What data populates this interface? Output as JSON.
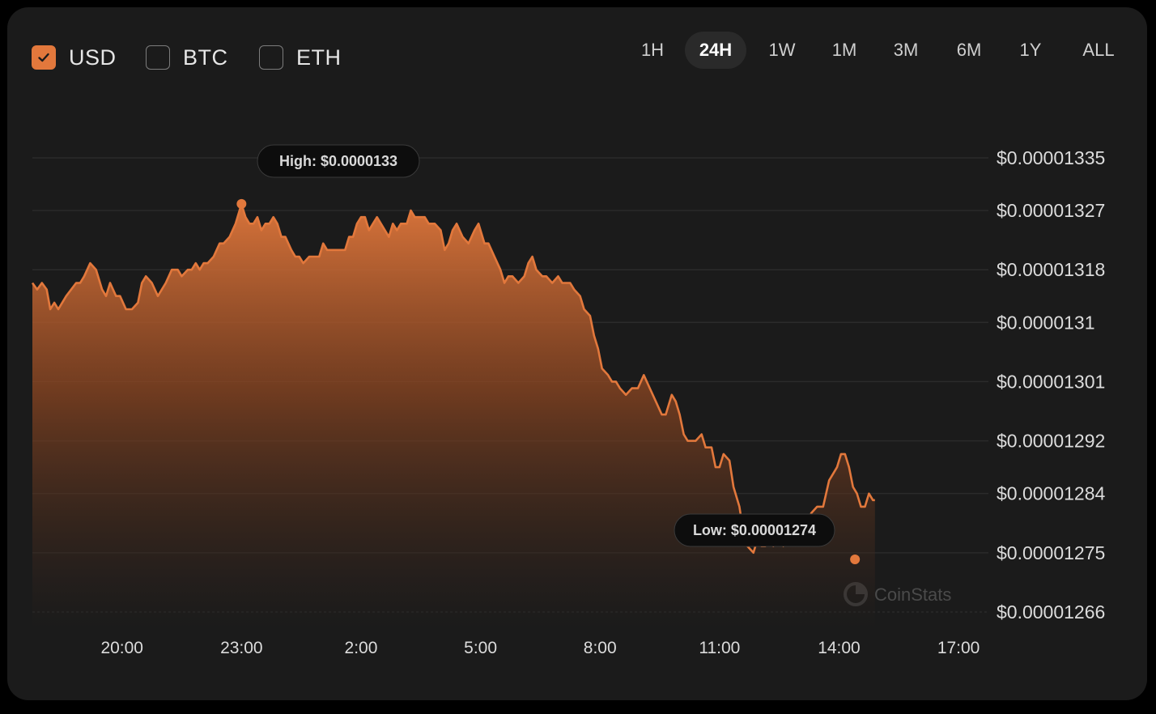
{
  "currencies": [
    {
      "label": "USD",
      "checked": true
    },
    {
      "label": "BTC",
      "checked": false
    },
    {
      "label": "ETH",
      "checked": false
    }
  ],
  "time_ranges": [
    "1H",
    "24H",
    "1W",
    "1M",
    "3M",
    "6M",
    "1Y",
    "ALL"
  ],
  "active_range": "24H",
  "watermark": "CoinStats",
  "colors": {
    "accent": "#e2783c",
    "background": "#1b1b1b",
    "text": "#dcdcdc"
  },
  "chart_data": {
    "type": "area",
    "title": "",
    "xlabel": "",
    "ylabel": "",
    "y_tick_labels": [
      "$0.00001335",
      "$0.00001327",
      "$0.00001318",
      "$0.0000131",
      "$0.00001301",
      "$0.00001292",
      "$0.00001284",
      "$0.00001275",
      "$0.00001266"
    ],
    "y_ticks": [
      1.335e-05,
      1.327e-05,
      1.318e-05,
      1.31e-05,
      1.301e-05,
      1.292e-05,
      1.284e-05,
      1.275e-05,
      1.266e-05
    ],
    "x_tick_labels": [
      "20:00",
      "23:00",
      "2:00",
      "5:00",
      "8:00",
      "11:00",
      "14:00",
      "17:00"
    ],
    "x_ticks_hours": [
      2.25,
      5.25,
      8.25,
      11.25,
      14.25,
      17.25,
      20.25,
      23.25
    ],
    "x_unit": "hours elapsed in 24H window",
    "ylim": [
      1.266e-05,
      1.335e-05
    ],
    "grid": true,
    "annotations": {
      "high": {
        "label": "High: $0.0000133",
        "x": 5.25,
        "y": 1.328e-05
      },
      "low": {
        "label": "Low: $0.00001274",
        "x": 20.65,
        "y": 1.274e-05
      }
    },
    "series": [
      {
        "points": [
          [
            0.0,
            1.316e-05
          ],
          [
            0.12,
            1.315e-05
          ],
          [
            0.24,
            1.316e-05
          ],
          [
            0.36,
            1.315e-05
          ],
          [
            0.45,
            1.312e-05
          ],
          [
            0.55,
            1.313e-05
          ],
          [
            0.65,
            1.312e-05
          ],
          [
            0.85,
            1.314e-05
          ],
          [
            1.1,
            1.316e-05
          ],
          [
            1.2,
            1.316e-05
          ],
          [
            1.3,
            1.317e-05
          ],
          [
            1.45,
            1.319e-05
          ],
          [
            1.6,
            1.318e-05
          ],
          [
            1.75,
            1.315e-05
          ],
          [
            1.85,
            1.314e-05
          ],
          [
            1.95,
            1.316e-05
          ],
          [
            2.1,
            1.314e-05
          ],
          [
            2.2,
            1.314e-05
          ],
          [
            2.35,
            1.312e-05
          ],
          [
            2.5,
            1.312e-05
          ],
          [
            2.65,
            1.313e-05
          ],
          [
            2.75,
            1.316e-05
          ],
          [
            2.85,
            1.317e-05
          ],
          [
            3.0,
            1.316e-05
          ],
          [
            3.15,
            1.314e-05
          ],
          [
            3.35,
            1.316e-05
          ],
          [
            3.5,
            1.318e-05
          ],
          [
            3.65,
            1.318e-05
          ],
          [
            3.75,
            1.317e-05
          ],
          [
            3.9,
            1.318e-05
          ],
          [
            4.0,
            1.318e-05
          ],
          [
            4.1,
            1.319e-05
          ],
          [
            4.2,
            1.318e-05
          ],
          [
            4.3,
            1.319e-05
          ],
          [
            4.4,
            1.319e-05
          ],
          [
            4.55,
            1.32e-05
          ],
          [
            4.7,
            1.322e-05
          ],
          [
            4.8,
            1.322e-05
          ],
          [
            4.95,
            1.323e-05
          ],
          [
            5.1,
            1.325e-05
          ],
          [
            5.25,
            1.328e-05
          ],
          [
            5.35,
            1.326e-05
          ],
          [
            5.45,
            1.325e-05
          ],
          [
            5.55,
            1.325e-05
          ],
          [
            5.65,
            1.326e-05
          ],
          [
            5.75,
            1.324e-05
          ],
          [
            5.85,
            1.325e-05
          ],
          [
            5.95,
            1.325e-05
          ],
          [
            6.05,
            1.326e-05
          ],
          [
            6.15,
            1.325e-05
          ],
          [
            6.25,
            1.323e-05
          ],
          [
            6.35,
            1.323e-05
          ],
          [
            6.5,
            1.321e-05
          ],
          [
            6.6,
            1.32e-05
          ],
          [
            6.7,
            1.32e-05
          ],
          [
            6.8,
            1.319e-05
          ],
          [
            6.95,
            1.32e-05
          ],
          [
            7.1,
            1.32e-05
          ],
          [
            7.2,
            1.32e-05
          ],
          [
            7.3,
            1.322e-05
          ],
          [
            7.4,
            1.321e-05
          ],
          [
            7.5,
            1.321e-05
          ],
          [
            7.65,
            1.321e-05
          ],
          [
            7.85,
            1.321e-05
          ],
          [
            7.95,
            1.323e-05
          ],
          [
            8.05,
            1.323e-05
          ],
          [
            8.15,
            1.325e-05
          ],
          [
            8.25,
            1.326e-05
          ],
          [
            8.35,
            1.326e-05
          ],
          [
            8.45,
            1.324e-05
          ],
          [
            8.55,
            1.325e-05
          ],
          [
            8.65,
            1.326e-05
          ],
          [
            8.75,
            1.325e-05
          ],
          [
            8.85,
            1.324e-05
          ],
          [
            8.95,
            1.323e-05
          ],
          [
            9.05,
            1.325e-05
          ],
          [
            9.15,
            1.324e-05
          ],
          [
            9.25,
            1.325e-05
          ],
          [
            9.4,
            1.325e-05
          ],
          [
            9.5,
            1.327e-05
          ],
          [
            9.6,
            1.326e-05
          ],
          [
            9.75,
            1.326e-05
          ],
          [
            9.85,
            1.326e-05
          ],
          [
            9.95,
            1.325e-05
          ],
          [
            10.1,
            1.325e-05
          ],
          [
            10.25,
            1.324e-05
          ],
          [
            10.35,
            1.321e-05
          ],
          [
            10.45,
            1.322e-05
          ],
          [
            10.55,
            1.324e-05
          ],
          [
            10.65,
            1.325e-05
          ],
          [
            10.8,
            1.323e-05
          ],
          [
            10.95,
            1.322e-05
          ],
          [
            11.1,
            1.324e-05
          ],
          [
            11.2,
            1.325e-05
          ],
          [
            11.35,
            1.322e-05
          ],
          [
            11.45,
            1.322e-05
          ],
          [
            11.6,
            1.32e-05
          ],
          [
            11.75,
            1.318e-05
          ],
          [
            11.85,
            1.316e-05
          ],
          [
            11.95,
            1.317e-05
          ],
          [
            12.05,
            1.317e-05
          ],
          [
            12.2,
            1.316e-05
          ],
          [
            12.35,
            1.317e-05
          ],
          [
            12.45,
            1.319e-05
          ],
          [
            12.55,
            1.32e-05
          ],
          [
            12.65,
            1.318e-05
          ],
          [
            12.8,
            1.317e-05
          ],
          [
            12.9,
            1.317e-05
          ],
          [
            13.05,
            1.316e-05
          ],
          [
            13.2,
            1.317e-05
          ],
          [
            13.3,
            1.316e-05
          ],
          [
            13.5,
            1.316e-05
          ],
          [
            13.6,
            1.315e-05
          ],
          [
            13.75,
            1.314e-05
          ],
          [
            13.85,
            1.312e-05
          ],
          [
            14.0,
            1.311e-05
          ],
          [
            14.1,
            1.308e-05
          ],
          [
            14.2,
            1.306e-05
          ],
          [
            14.3,
            1.303e-05
          ],
          [
            14.45,
            1.302e-05
          ],
          [
            14.55,
            1.301e-05
          ],
          [
            14.65,
            1.301e-05
          ],
          [
            14.75,
            1.3e-05
          ],
          [
            14.9,
            1.299e-05
          ],
          [
            15.05,
            1.3e-05
          ],
          [
            15.2,
            1.3e-05
          ],
          [
            15.35,
            1.302e-05
          ],
          [
            15.5,
            1.3e-05
          ],
          [
            15.65,
            1.298e-05
          ],
          [
            15.8,
            1.296e-05
          ],
          [
            15.9,
            1.296e-05
          ],
          [
            16.05,
            1.299e-05
          ],
          [
            16.15,
            1.298e-05
          ],
          [
            16.25,
            1.296e-05
          ],
          [
            16.35,
            1.293e-05
          ],
          [
            16.45,
            1.292e-05
          ],
          [
            16.55,
            1.292e-05
          ],
          [
            16.65,
            1.292e-05
          ],
          [
            16.8,
            1.293e-05
          ],
          [
            16.9,
            1.291e-05
          ],
          [
            17.05,
            1.291e-05
          ],
          [
            17.15,
            1.288e-05
          ],
          [
            17.25,
            1.288e-05
          ],
          [
            17.35,
            1.29e-05
          ],
          [
            17.5,
            1.289e-05
          ],
          [
            17.6,
            1.285e-05
          ],
          [
            17.75,
            1.282e-05
          ],
          [
            17.85,
            1.278e-05
          ],
          [
            17.95,
            1.276e-05
          ],
          [
            18.1,
            1.275e-05
          ],
          [
            18.2,
            1.277e-05
          ],
          [
            18.3,
            1.276e-05
          ],
          [
            18.4,
            1.276e-05
          ],
          [
            18.5,
            1.278e-05
          ],
          [
            18.6,
            1.276e-05
          ],
          [
            18.75,
            1.277e-05
          ],
          [
            18.85,
            1.276e-05
          ],
          [
            19.0,
            1.278e-05
          ],
          [
            19.1,
            1.279e-05
          ],
          [
            19.2,
            1.279e-05
          ],
          [
            19.3,
            1.278e-05
          ],
          [
            19.45,
            1.278e-05
          ],
          [
            19.55,
            1.281e-05
          ],
          [
            19.7,
            1.282e-05
          ],
          [
            19.85,
            1.282e-05
          ],
          [
            20.0,
            1.286e-05
          ],
          [
            20.1,
            1.287e-05
          ],
          [
            20.2,
            1.288e-05
          ],
          [
            20.3,
            1.29e-05
          ],
          [
            20.4,
            1.29e-05
          ],
          [
            20.5,
            1.288e-05
          ],
          [
            20.6,
            1.285e-05
          ],
          [
            20.7,
            1.284e-05
          ],
          [
            20.8,
            1.282e-05
          ],
          [
            20.9,
            1.282e-05
          ],
          [
            21.0,
            1.284e-05
          ],
          [
            21.1,
            1.283e-05
          ],
          [
            21.15,
            1.283e-05
          ]
        ],
        "color": "#e2783c"
      }
    ]
  }
}
